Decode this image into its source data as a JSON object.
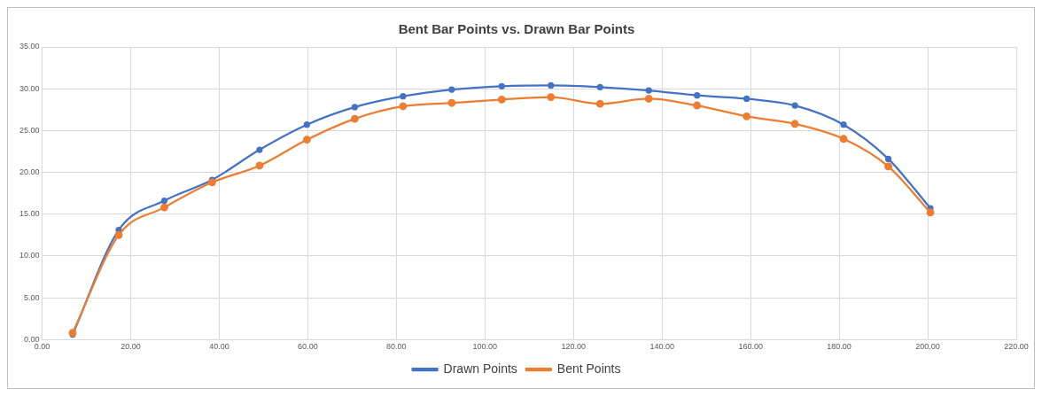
{
  "chart_data": {
    "type": "line",
    "title": "Bent Bar Points vs. Drawn Bar Points",
    "x": [
      6.9,
      17.3,
      27.6,
      38.4,
      49.1,
      59.8,
      70.6,
      81.5,
      92.5,
      103.8,
      114.9,
      126,
      137,
      147.9,
      159.1,
      170,
      181,
      191.1,
      200.6
    ],
    "series": [
      {
        "name": "Drawn Points",
        "color": "#4472c4",
        "values": [
          0.6,
          13.1,
          16.6,
          19.1,
          22.7,
          25.7,
          27.8,
          29.1,
          29.9,
          30.3,
          30.4,
          30.2,
          29.8,
          29.2,
          28.8,
          28.0,
          25.7,
          21.6,
          15.7
        ]
      },
      {
        "name": "Bent Points",
        "color": "#ed7d31",
        "values": [
          0.8,
          12.5,
          15.8,
          18.8,
          20.8,
          23.9,
          26.4,
          27.9,
          28.3,
          28.7,
          29.0,
          28.2,
          28.8,
          28.0,
          26.7,
          25.8,
          24.0,
          20.7,
          15.2
        ]
      }
    ],
    "xlim": [
      0,
      220
    ],
    "xticks": [
      {
        "value": 0,
        "label": "0.00"
      },
      {
        "value": 20,
        "label": "20.00"
      },
      {
        "value": 40,
        "label": "40.00"
      },
      {
        "value": 60,
        "label": "60.00"
      },
      {
        "value": 80,
        "label": "80.00"
      },
      {
        "value": 100,
        "label": "100.00"
      },
      {
        "value": 120,
        "label": "120.00"
      },
      {
        "value": 140,
        "label": "140.00"
      },
      {
        "value": 160,
        "label": "160.00"
      },
      {
        "value": 180,
        "label": "180.00"
      },
      {
        "value": 200,
        "label": "200.00"
      },
      {
        "value": 220,
        "label": "220.00"
      }
    ],
    "ylim": [
      0,
      35
    ],
    "yticks": [
      {
        "value": 0,
        "label": "0.00"
      },
      {
        "value": 5,
        "label": "5.00"
      },
      {
        "value": 10,
        "label": "10.00"
      },
      {
        "value": 15,
        "label": "15.00"
      },
      {
        "value": 20,
        "label": "20.00"
      },
      {
        "value": 25,
        "label": "25.00"
      },
      {
        "value": 30,
        "label": "30.00"
      },
      {
        "value": 35,
        "label": "35.00"
      }
    ],
    "grid": true,
    "legend": "bottom",
    "marker": "circle",
    "line_style": "solid"
  }
}
